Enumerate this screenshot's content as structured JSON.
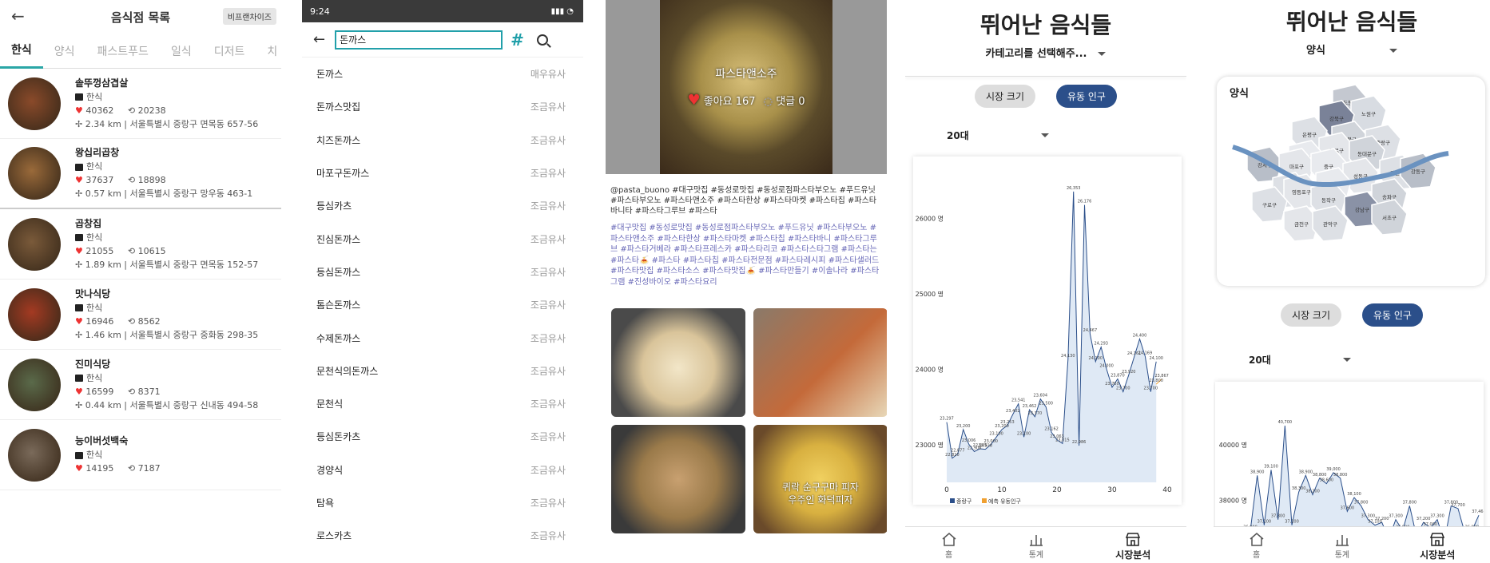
{
  "panel1": {
    "title": "음식점 목록",
    "franchise_label": "비프랜차이즈",
    "tabs": [
      "한식",
      "양식",
      "패스트푸드",
      "일식",
      "디저트",
      "치"
    ],
    "restaurants": [
      {
        "name": "솥뚜껑삼겹살",
        "category": "한식",
        "likes": "40362",
        "views": "20238",
        "distance": "2.34 km",
        "address": "서울특별시 중랑구 면목동 657-56",
        "color": "#8a4a2a"
      },
      {
        "name": "왕십리곱창",
        "category": "한식",
        "likes": "37637",
        "views": "18898",
        "distance": "0.57 km",
        "address": "서울특별시 중랑구 망우동 463-1",
        "color": "#9a6a3a"
      },
      {
        "name": "곱창집",
        "category": "한식",
        "likes": "21055",
        "views": "10615",
        "distance": "1.89 km",
        "address": "서울특별시 중랑구 면목동 152-57",
        "color": "#7a5a3a"
      },
      {
        "name": "맛나식당",
        "category": "한식",
        "likes": "16946",
        "views": "8562",
        "distance": "1.46 km",
        "address": "서울특별시 중랑구 중화동 298-35",
        "color": "#a43a22"
      },
      {
        "name": "진미식당",
        "category": "한식",
        "likes": "16599",
        "views": "8371",
        "distance": "0.44 km",
        "address": "서울특별시 중랑구 신내동 494-58",
        "color": "#5a6a4a"
      },
      {
        "name": "능이버섯백숙",
        "category": "한식",
        "likes": "14195",
        "views": "7187",
        "distance": "",
        "address": "",
        "color": "#7a6a5a"
      }
    ]
  },
  "panel2": {
    "status_time": "9:24",
    "query": "돈까스",
    "results": [
      {
        "name": "돈까스",
        "tag": "매우유사"
      },
      {
        "name": "돈까스맛집",
        "tag": "조금유사"
      },
      {
        "name": "치즈돈까스",
        "tag": "조금유사"
      },
      {
        "name": "마포구돈까스",
        "tag": "조금유사"
      },
      {
        "name": "등심카츠",
        "tag": "조금유사"
      },
      {
        "name": "진심돈까스",
        "tag": "조금유사"
      },
      {
        "name": "등심돈까스",
        "tag": "조금유사"
      },
      {
        "name": "톰슨돈까스",
        "tag": "조금유사"
      },
      {
        "name": "수제돈까스",
        "tag": "조금유사"
      },
      {
        "name": "문천식의돈까스",
        "tag": "조금유사"
      },
      {
        "name": "문천식",
        "tag": "조금유사"
      },
      {
        "name": "등심돈카츠",
        "tag": "조금유사"
      },
      {
        "name": "경양식",
        "tag": "조금유사"
      },
      {
        "name": "탐욕",
        "tag": "조금유사"
      },
      {
        "name": "로스카츠",
        "tag": "조금유사"
      }
    ]
  },
  "panel3": {
    "hero_name": "파스타앤소주",
    "hero_likes": "좋아요 167",
    "hero_comments": "댓글 0",
    "caption": "@pasta_buono #대구맛집 #동성로맛집 #동성로점파스타부오노 #푸드유닛 #파스타부오노 #파스타앤소주 #파스타한상 #파스타마켓 #파스타집 #파스타바니타 #파스타그루브 #파스타",
    "tags": "#대구맛집 #동성로맛집 #동성로점파스타부오노 #푸드유닛 #파스타부오노 #파스타앤소주 #파스타한상 #파스타마켓 #파스타칩 #파스타바니 #파스타그루브 #파스타거베라 #파스타프레스카 #파스타리코 #파스타스타그램 #파스타는 #파스타🍝 #파스타 #파스타칩 #파스타전문점 #파스타레시피 #파스타샐러드 #파스타맛집 #파스타소스 #파스타맛집🍝 #파스타만들기 #이솔나라 #파스타그램 #진성바이오 #파스타요리",
    "grid_texts": [
      "",
      "",
      "",
      "퀴락 순구구마 피자\n우주인 화덕피자"
    ]
  },
  "panel4": {
    "title": "뛰어난 음식들",
    "category_select": "카테고리를 선택해주...",
    "btn_market": "시장 크기",
    "btn_flow": "유동 인구",
    "age": "20대",
    "legend_a": "중랑구",
    "legend_b": "예측 유동인구",
    "nav": [
      "홈",
      "통계",
      "시장분석"
    ]
  },
  "panel5": {
    "title": "뛰어난 음식들",
    "category_select": "양식",
    "map_label": "양식",
    "btn_market": "시장 크기",
    "btn_flow": "유동 인구",
    "age": "20대",
    "nav": [
      "홈",
      "통계",
      "시장분석"
    ],
    "districts": [
      "도봉구",
      "노원구",
      "강북구",
      "은평구",
      "성북구",
      "중랑구",
      "종로구",
      "동대문구",
      "서대문구",
      "강서구",
      "마포구",
      "중구",
      "광진구",
      "성동구",
      "용산구",
      "강동구",
      "양천구",
      "영등포구",
      "동작구",
      "송파구",
      "구로구",
      "강남구",
      "서초구",
      "금천구",
      "관악구"
    ]
  },
  "chart_data": [
    {
      "type": "area",
      "title": "",
      "xlabel": "",
      "ylabel": "",
      "xlim": [
        0,
        40
      ],
      "ylim": [
        22500,
        26500
      ],
      "y_ticks": [
        "26000 명",
        "25000 명",
        "24000 명",
        "23000 명"
      ],
      "x_ticks": [
        "0",
        "10",
        "20",
        "30",
        "40"
      ],
      "series": [
        {
          "name": "중랑구",
          "color": "#2b4f8a",
          "x": [
            0,
            1,
            2,
            3,
            4,
            5,
            6,
            7,
            8,
            9,
            10,
            11,
            12,
            13,
            14,
            15,
            16,
            17,
            18,
            19,
            20,
            21,
            22,
            23,
            24,
            25,
            26,
            27,
            28,
            29,
            30,
            31,
            32,
            33,
            34,
            35,
            36,
            37,
            38
          ],
          "y": [
            23297,
            22820,
            22877,
            23200,
            23006,
            22908,
            22945,
            22938,
            23000,
            23100,
            23200,
            23253,
            23402,
            23541,
            23100,
            23462,
            23370,
            23604,
            23500,
            23162,
            23063,
            23015,
            24130,
            26353,
            22986,
            26176,
            24467,
            24100,
            24293,
            24000,
            23760,
            23870,
            23700,
            23920,
            24161,
            24400,
            24169,
            23700,
            24100
          ]
        },
        {
          "name": "예측 유동인구",
          "color": "#f0a030",
          "x": [
            38,
            39
          ],
          "y": [
            23800,
            23867
          ]
        }
      ]
    },
    {
      "type": "area",
      "title": "",
      "xlabel": "",
      "ylabel": "",
      "ylim": [
        36800,
        42000
      ],
      "y_ticks": [
        "40000 명",
        "38000 명"
      ],
      "series": [
        {
          "name": "",
          "color": "#2b4f8a",
          "x": [
            0,
            1,
            2,
            3,
            4,
            5,
            6,
            7,
            8,
            9,
            10,
            11,
            12,
            13,
            14,
            15,
            16,
            17,
            18,
            19,
            20,
            21,
            22,
            23,
            24,
            25,
            26,
            27,
            28,
            29,
            30,
            31,
            32,
            33
          ],
          "y": [
            36900,
            38900,
            37100,
            39100,
            37300,
            40700,
            37100,
            38300,
            38900,
            38200,
            38800,
            38600,
            39000,
            38800,
            37600,
            38100,
            37800,
            37300,
            37100,
            37200,
            36600,
            37300,
            36900,
            37800,
            36700,
            37200,
            37000,
            37300,
            36500,
            37800,
            37700,
            36800,
            36900,
            37460
          ]
        }
      ]
    }
  ]
}
